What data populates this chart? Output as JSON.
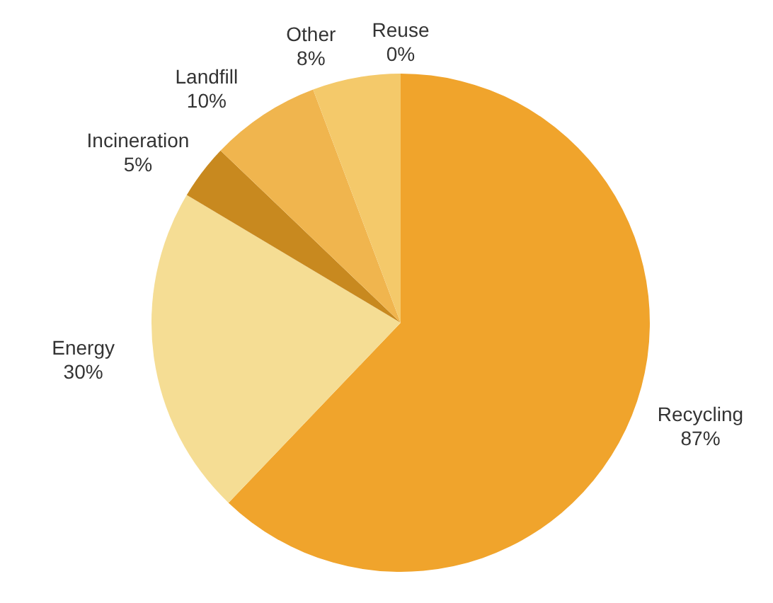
{
  "chart_data": {
    "type": "pie",
    "categories": [
      "Reuse",
      "Recycling",
      "Energy",
      "Incineration",
      "Landfill",
      "Other"
    ],
    "values": [
      0,
      87,
      30,
      5,
      10,
      8
    ],
    "value_labels": [
      "0%",
      "87%",
      "30%",
      "5%",
      "10%",
      "8%"
    ],
    "colors": [
      "#8a5a10",
      "#f0a42c",
      "#f5dd94",
      "#c8891f",
      "#f0b54e",
      "#f4c96a"
    ]
  }
}
